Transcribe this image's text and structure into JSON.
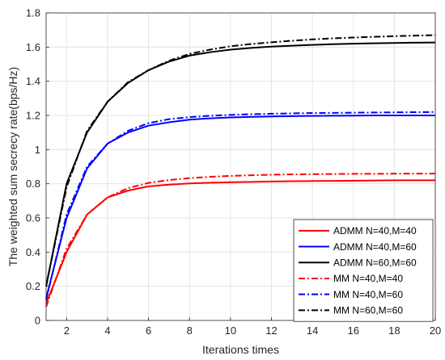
{
  "chart_data": {
    "type": "line",
    "title": "",
    "xlabel": "Iterations times",
    "ylabel": "The weighted sum secrecy rate(bps/Hz)",
    "xlim": [
      1,
      20
    ],
    "ylim": [
      0,
      1.8
    ],
    "xticks": [
      2,
      4,
      6,
      8,
      10,
      12,
      14,
      16,
      18,
      20
    ],
    "yticks": [
      0,
      0.2,
      0.4,
      0.6,
      0.8,
      1,
      1.2,
      1.4,
      1.6,
      1.8
    ],
    "grid": true,
    "legend_position": "bottom-right",
    "x": [
      1,
      2,
      3,
      4,
      5,
      6,
      7,
      8,
      9,
      10,
      11,
      12,
      13,
      14,
      15,
      16,
      17,
      18,
      19,
      20
    ],
    "series": [
      {
        "name": "ADMM N=40,M=40",
        "color": "#ff0000",
        "dash": "solid",
        "values": [
          0.1,
          0.4,
          0.62,
          0.72,
          0.76,
          0.785,
          0.795,
          0.802,
          0.806,
          0.809,
          0.811,
          0.813,
          0.815,
          0.816,
          0.817,
          0.818,
          0.819,
          0.82,
          0.82,
          0.82
        ]
      },
      {
        "name": "ADMM N=40,M=60",
        "color": "#0000ff",
        "dash": "solid",
        "values": [
          0.13,
          0.6,
          0.89,
          1.035,
          1.1,
          1.14,
          1.16,
          1.175,
          1.183,
          1.188,
          1.191,
          1.194,
          1.196,
          1.197,
          1.198,
          1.199,
          1.2,
          1.2,
          1.2,
          1.2
        ]
      },
      {
        "name": "ADMM N=60,M=60",
        "color": "#000000",
        "dash": "solid",
        "values": [
          0.2,
          0.8,
          1.1,
          1.28,
          1.39,
          1.465,
          1.515,
          1.55,
          1.57,
          1.585,
          1.595,
          1.603,
          1.608,
          1.613,
          1.617,
          1.62,
          1.622,
          1.624,
          1.626,
          1.627
        ]
      },
      {
        "name": "MM N=40,M=40",
        "color": "#ff0000",
        "dash": "dashdot",
        "values": [
          0.08,
          0.42,
          0.62,
          0.72,
          0.775,
          0.805,
          0.822,
          0.833,
          0.841,
          0.846,
          0.85,
          0.853,
          0.855,
          0.856,
          0.857,
          0.858,
          0.858,
          0.859,
          0.859,
          0.86
        ]
      },
      {
        "name": "MM N=40,M=60",
        "color": "#0000ff",
        "dash": "dashdot",
        "values": [
          0.12,
          0.62,
          0.9,
          1.035,
          1.11,
          1.155,
          1.178,
          1.19,
          1.198,
          1.203,
          1.207,
          1.21,
          1.212,
          1.214,
          1.215,
          1.216,
          1.217,
          1.218,
          1.219,
          1.22
        ]
      },
      {
        "name": "MM N=60,M=60",
        "color": "#000000",
        "dash": "dashdot",
        "values": [
          0.2,
          0.78,
          1.11,
          1.28,
          1.395,
          1.465,
          1.52,
          1.56,
          1.585,
          1.605,
          1.618,
          1.628,
          1.637,
          1.645,
          1.651,
          1.656,
          1.66,
          1.664,
          1.667,
          1.67
        ]
      }
    ]
  }
}
